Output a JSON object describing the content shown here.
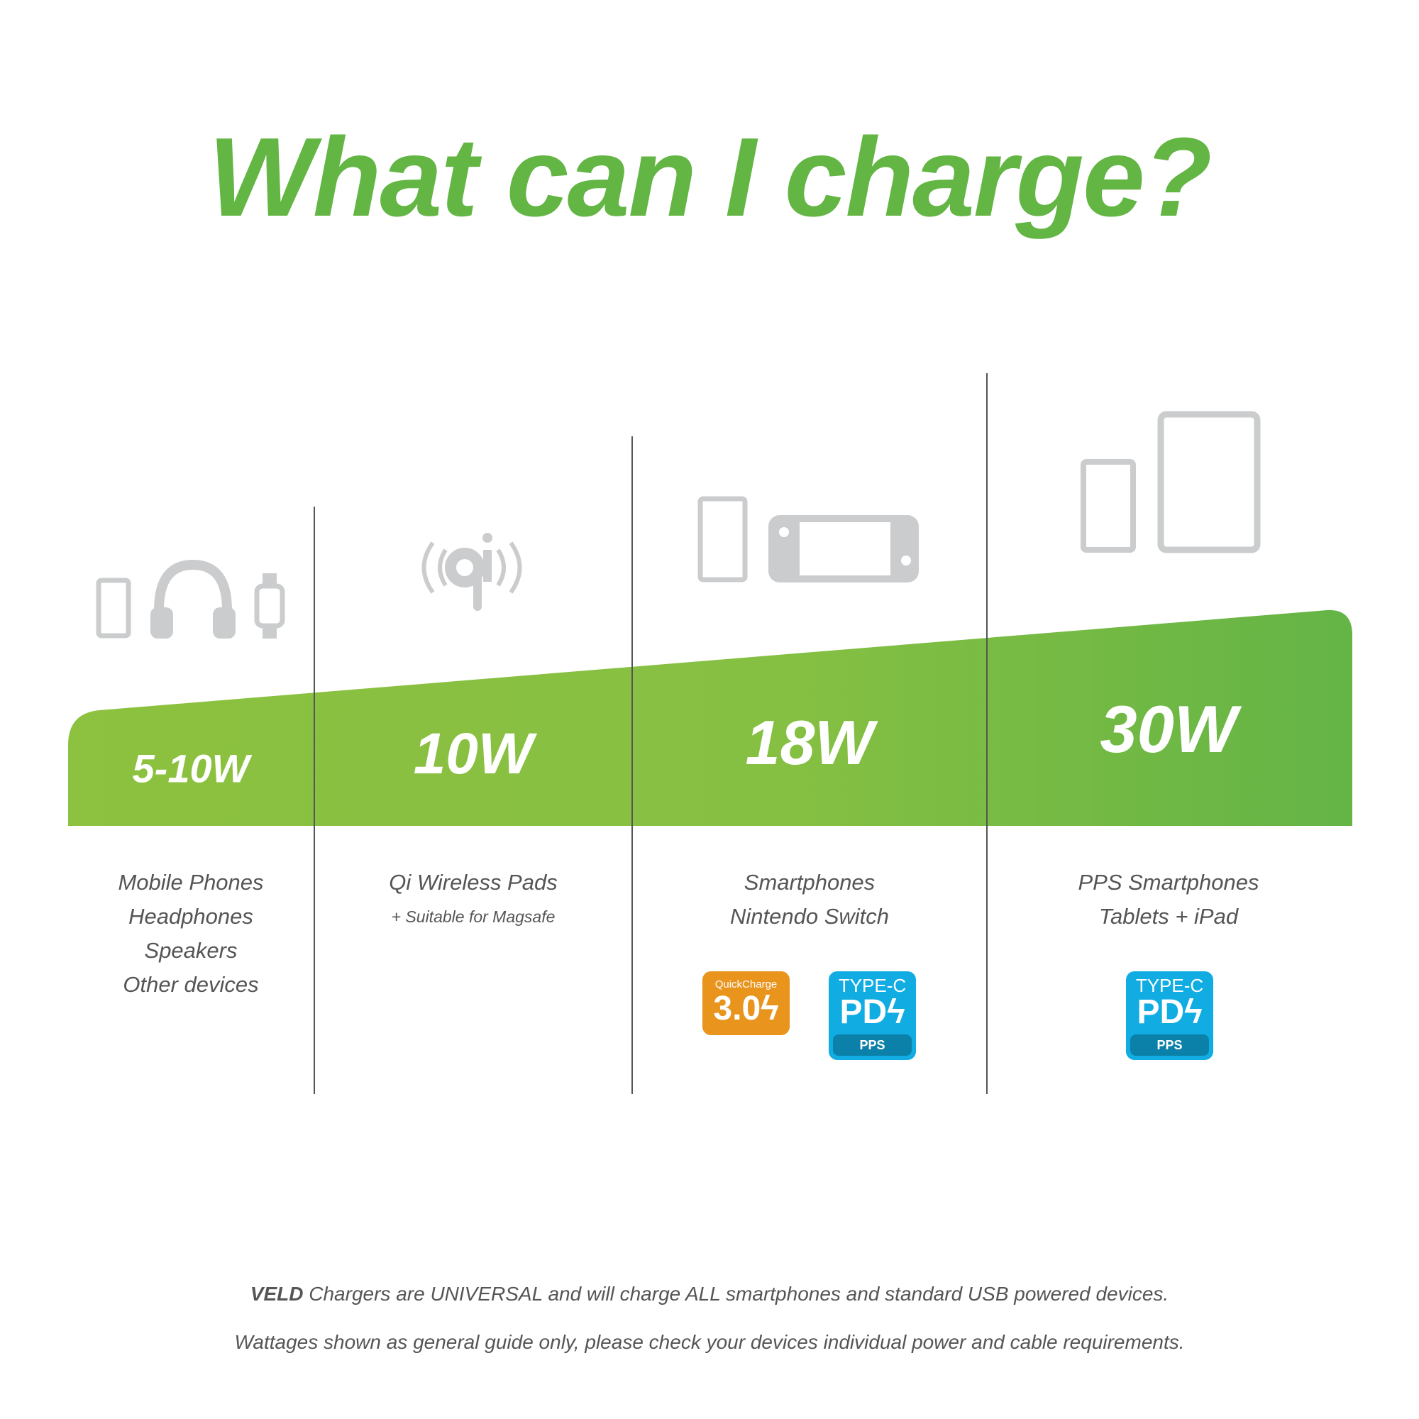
{
  "title": "What can I charge?",
  "colors": {
    "accent": "#63b544",
    "band_start": "#8dc140",
    "band_end": "#64b446",
    "icon_gray": "#cbcccd",
    "qc_orange": "#e8941d",
    "pd_blue": "#10ace2"
  },
  "tiers": [
    {
      "wattage": "5-10W",
      "icons": [
        "phone-icon",
        "headphones-icon",
        "smartwatch-icon"
      ],
      "devices": [
        "Mobile Phones",
        "Headphones",
        "Speakers",
        "Other devices"
      ]
    },
    {
      "wattage": "10W",
      "icons": [
        "qi-wireless-icon"
      ],
      "devices": [
        "Qi Wireless Pads"
      ],
      "note": "+ Suitable for Magsafe"
    },
    {
      "wattage": "18W",
      "icons": [
        "phone-icon",
        "nintendo-switch-icon"
      ],
      "devices": [
        "Smartphones",
        "Nintendo Switch"
      ],
      "badges": [
        {
          "line1": "QuickCharge",
          "line2": "3.0"
        },
        {
          "line1": "TYPE-C",
          "line2": "PD",
          "line3": "PPS"
        }
      ]
    },
    {
      "wattage": "30W",
      "icons": [
        "phone-icon",
        "tablet-icon"
      ],
      "devices": [
        "PPS Smartphones",
        "Tablets + iPad"
      ],
      "badges": [
        {
          "line1": "TYPE-C",
          "line2": "PD",
          "line3": "PPS"
        }
      ]
    }
  ],
  "footer": {
    "brand": "VELD",
    "line1_rest": " Chargers are UNIVERSAL and will charge ALL smartphones and standard USB powered devices.",
    "line2": "Wattages shown as general guide only, please check your devices individual power and cable requirements."
  }
}
